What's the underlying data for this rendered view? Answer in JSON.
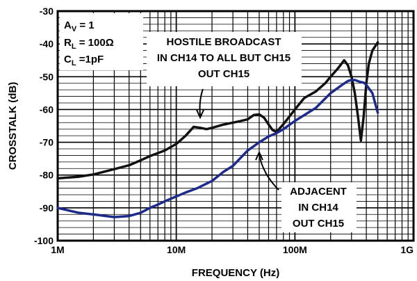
{
  "chart_data": {
    "type": "line",
    "xlabel": "FREQUENCY (Hz)",
    "ylabel": "CROSSTALK (dB)",
    "xscale": "log",
    "xlim": [
      1000000,
      1000000000
    ],
    "ylim": [
      -100,
      -30
    ],
    "grid": true,
    "x_tick_labels": [
      "1M",
      "10M",
      "100M",
      "1G"
    ],
    "y_tick_labels": [
      "-30",
      "-40",
      "-50",
      "-60",
      "-70",
      "-80",
      "-90",
      "-100"
    ],
    "conditions": {
      "av": {
        "main": "A",
        "sub": "V",
        "rest": " = 1"
      },
      "rl": {
        "main": "R",
        "sub": "L",
        "rest": " = 100Ω"
      },
      "cl": {
        "main": "C",
        "sub": "L",
        "rest": " =1pF"
      }
    },
    "annotations": {
      "hostile": [
        "HOSTILE BROADCAST",
        "IN CH14 TO ALL BUT CH15",
        "OUT CH15"
      ],
      "adjacent": [
        "ADJACENT",
        "IN CH14",
        "OUT CH15"
      ]
    },
    "series": [
      {
        "color": "#111111",
        "x": [
          1000000,
          1500000,
          2000000,
          3000000,
          4000000,
          5000000,
          6000000,
          8000000,
          10000000,
          12000000,
          14000000,
          16000000,
          18000000,
          20000000,
          25000000,
          30000000,
          35000000,
          40000000,
          45000000,
          50000000,
          55000000,
          60000000,
          65000000,
          70000000,
          80000000,
          100000000,
          120000000,
          150000000,
          180000000,
          200000000,
          230000000,
          260000000,
          280000000,
          300000000,
          320000000,
          340000000,
          360000000,
          380000000,
          400000000,
          420000000,
          450000000,
          500000000
        ],
        "y": [
          -81,
          -80.5,
          -79.8,
          -78.2,
          -77,
          -75.5,
          -74.2,
          -72.5,
          -70.5,
          -68,
          -65.3,
          -65.6,
          -66,
          -65.6,
          -64.6,
          -64,
          -63.5,
          -63,
          -61.7,
          -61.5,
          -62.5,
          -64.6,
          -66.3,
          -66.8,
          -64.5,
          -60,
          -56.5,
          -54.5,
          -52,
          -50,
          -47.5,
          -45,
          -46.5,
          -50,
          -55,
          -62,
          -69.5,
          -62,
          -52,
          -46,
          -42,
          -39.5
        ]
      },
      {
        "color": "#1c2a8c",
        "x": [
          1000000,
          1500000,
          2000000,
          3000000,
          4000000,
          5000000,
          6000000,
          7000000,
          8000000,
          10000000,
          12000000,
          15000000,
          20000000,
          25000000,
          30000000,
          40000000,
          50000000,
          60000000,
          70000000,
          80000000,
          100000000,
          150000000,
          200000000,
          250000000,
          280000000,
          300000000,
          320000000,
          350000000,
          380000000,
          400000000,
          450000000,
          500000000
        ],
        "y": [
          -90,
          -91.5,
          -92,
          -92.8,
          -92.5,
          -91.5,
          -90,
          -89,
          -88,
          -86.5,
          -85.3,
          -84,
          -81.8,
          -79,
          -77.2,
          -72.5,
          -70,
          -68.2,
          -67.2,
          -66,
          -63.5,
          -59.5,
          -55,
          -52.5,
          -51.3,
          -51,
          -51,
          -51.5,
          -51.8,
          -52.5,
          -55,
          -61
        ]
      }
    ]
  }
}
